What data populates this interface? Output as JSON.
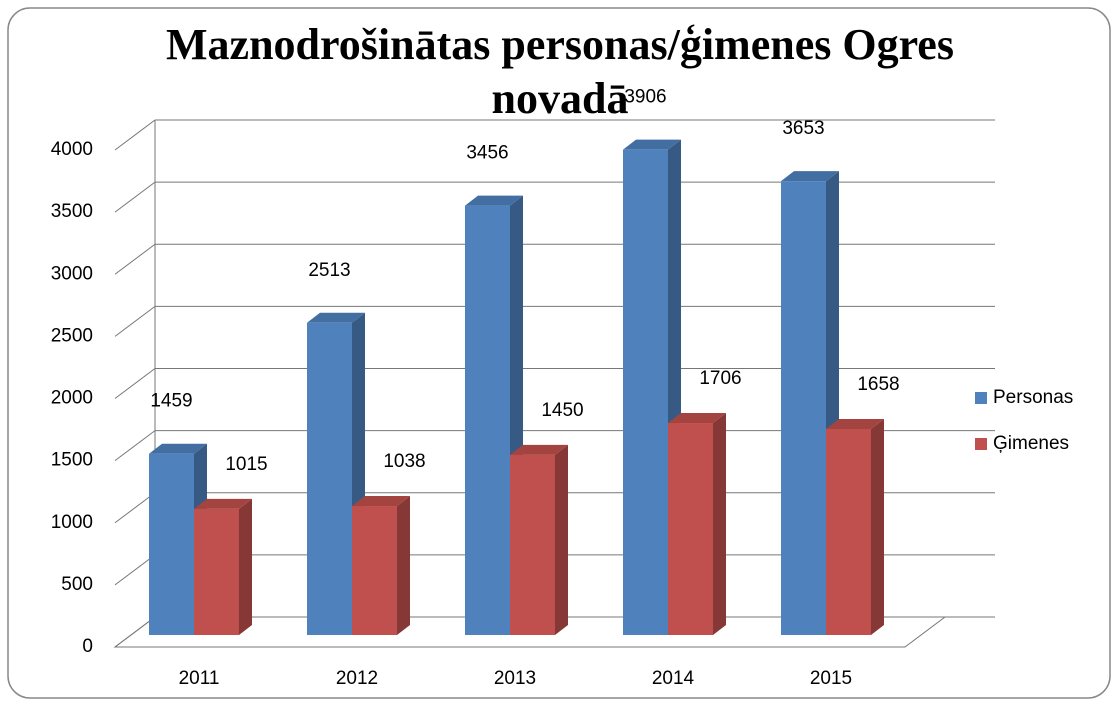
{
  "chart_data": {
    "type": "bar3d",
    "title": "Maznodrošinātas personas/ģimenes Ogres novadā",
    "categories": [
      "2011",
      "2012",
      "2013",
      "2014",
      "2015"
    ],
    "series": [
      {
        "name": "Personas",
        "color": "#4f81bd",
        "values": [
          1459,
          2513,
          3456,
          3906,
          3653
        ]
      },
      {
        "name": "Ģimenes",
        "color": "#c0504d",
        "values": [
          1015,
          1038,
          1450,
          1706,
          1658
        ]
      }
    ],
    "ylim": [
      0,
      4000
    ],
    "yticks": [
      0,
      500,
      1000,
      1500,
      2000,
      2500,
      3000,
      3500,
      4000
    ],
    "grid": true,
    "legend": "right"
  }
}
